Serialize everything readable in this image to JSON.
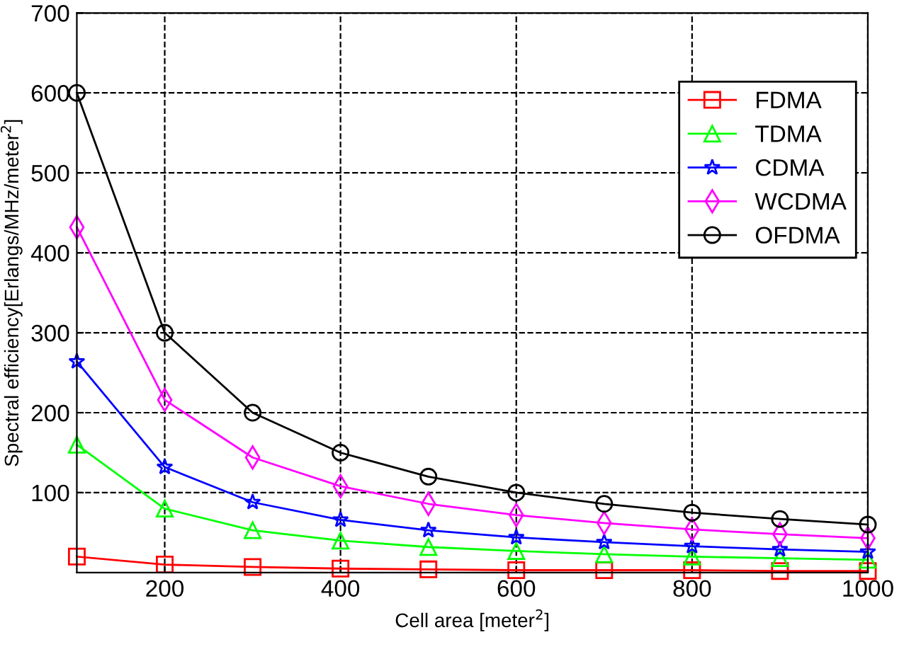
{
  "chart_data": {
    "type": "line",
    "xlabel": "Cell area [meter$^{2}$]",
    "ylabel": "Spectral efficiency[Erlangs/MHz/meter$^{2}$]",
    "x": [
      100,
      200,
      300,
      400,
      500,
      600,
      700,
      800,
      900,
      1000
    ],
    "series": [
      {
        "name": "FDMA",
        "color": "#ff0000",
        "marker": "square",
        "values": [
          20,
          10,
          7,
          5,
          4,
          3,
          3,
          3,
          2,
          2
        ]
      },
      {
        "name": "TDMA",
        "color": "#00ff00",
        "marker": "triangle",
        "values": [
          160,
          80,
          53,
          40,
          32,
          27,
          23,
          20,
          18,
          16
        ]
      },
      {
        "name": "CDMA",
        "color": "#0000ff",
        "marker": "star",
        "values": [
          264,
          132,
          88,
          66,
          53,
          44,
          38,
          33,
          29,
          26
        ]
      },
      {
        "name": "WCDMA",
        "color": "#ff00ff",
        "marker": "diamond",
        "values": [
          432,
          216,
          144,
          108,
          86,
          72,
          62,
          54,
          48,
          43
        ]
      },
      {
        "name": "OFDMA",
        "color": "#000000",
        "marker": "circle",
        "values": [
          600,
          300,
          200,
          150,
          120,
          100,
          86,
          75,
          67,
          60
        ]
      }
    ],
    "xlim": [
      100,
      1000
    ],
    "ylim": [
      0,
      700
    ],
    "xticks": [
      200,
      400,
      600,
      800,
      1000
    ],
    "yticks": [
      100,
      200,
      300,
      400,
      500,
      600,
      700
    ],
    "grid": true,
    "legend": "right",
    "line_style": "solid"
  }
}
